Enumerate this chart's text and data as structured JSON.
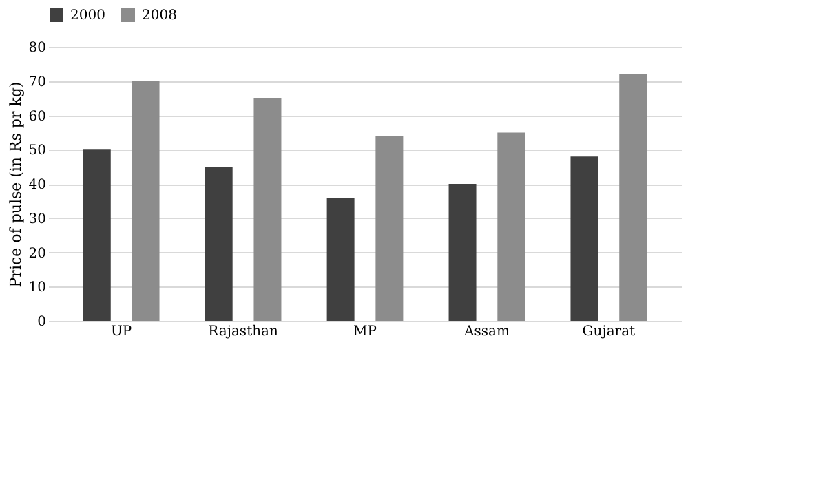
{
  "chart_data": {
    "type": "bar",
    "ylabel": "Price of pulse (in Rs pr kg)",
    "categories": [
      "UP",
      "Rajasthan",
      "MP",
      "Assam",
      "Gujarat"
    ],
    "series": [
      {
        "name": "2000",
        "color": "#404040",
        "values": [
          50,
          45,
          36,
          40,
          48
        ]
      },
      {
        "name": "2008",
        "color": "#8c8c8c",
        "values": [
          70,
          65,
          54,
          55,
          72
        ]
      }
    ],
    "ylim": [
      0,
      80
    ],
    "yticks": [
      0,
      10,
      20,
      30,
      40,
      50,
      60,
      70,
      80
    ],
    "grid": "y",
    "legend": "top"
  }
}
